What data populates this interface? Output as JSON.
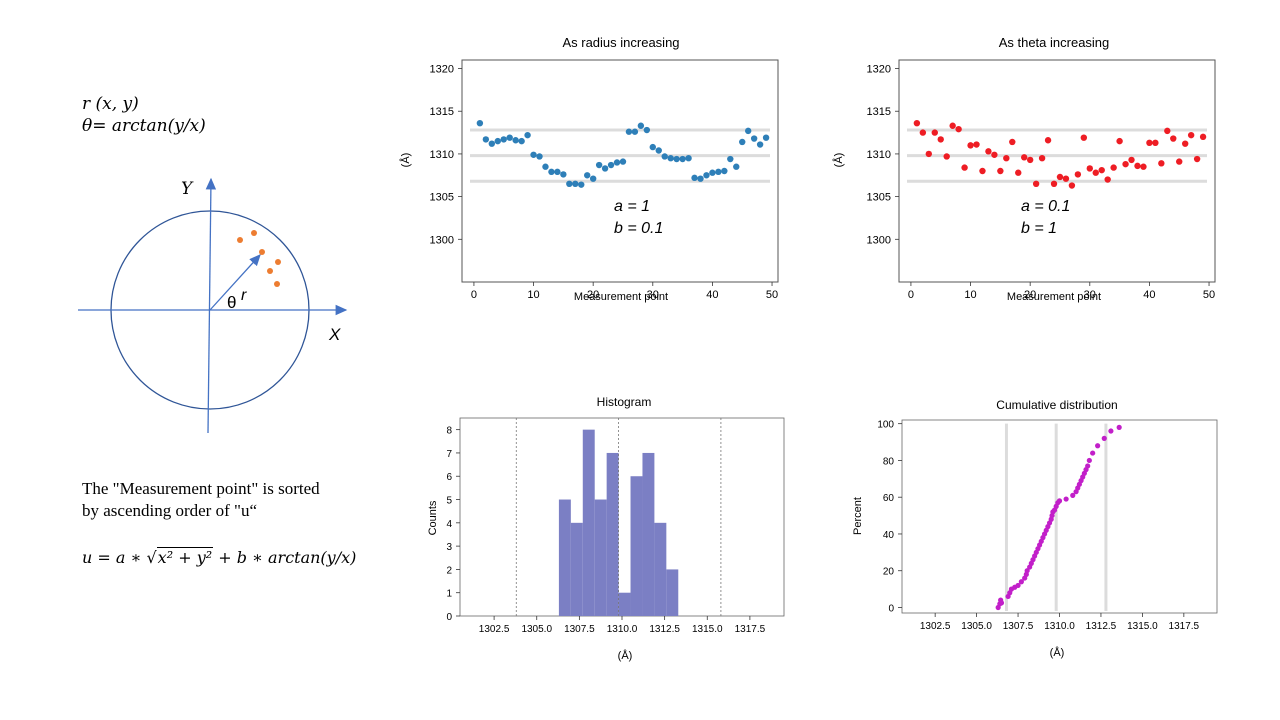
{
  "left_panel": {
    "formula_r": "r (x, y)",
    "formula_theta": "θ= arctan(y/x)",
    "axis_y_label": "Y",
    "axis_x_label": "X",
    "theta_symbol": "θ",
    "r_symbol": "r",
    "note_line1": "The \"Measurement point\" is sorted",
    "note_line2": "by ascending order of \"u“",
    "u_formula_lhs": "u = a ∗ ",
    "u_formula_sqrt": "x² + y²",
    "u_formula_rhs": " + b ∗ arctan(y/x)",
    "colors": {
      "circle": "#2f5597",
      "axis": "#4472c4",
      "points": "#ed7d31"
    }
  },
  "chart_data": [
    {
      "id": "radius",
      "type": "scatter",
      "title": "As radius increasing",
      "xlabel": "Measurement point",
      "ylabel": "(Å)",
      "xlim": [
        -2,
        51
      ],
      "ylim": [
        1295,
        1321
      ],
      "xticks": [
        0,
        10,
        20,
        30,
        40,
        50
      ],
      "yticks": [
        1300,
        1305,
        1310,
        1315,
        1320
      ],
      "reference_lines": [
        1306.8,
        1309.8,
        1312.8
      ],
      "color": "#2e7fb8",
      "annotation_line1": "a = 1",
      "annotation_line2": "b = 0.1",
      "x": [
        1,
        2,
        3,
        4,
        5,
        6,
        7,
        8,
        9,
        10,
        11,
        12,
        13,
        14,
        15,
        16,
        17,
        18,
        19,
        20,
        21,
        22,
        23,
        24,
        25,
        26,
        27,
        28,
        29,
        30,
        31,
        32,
        33,
        34,
        35,
        36,
        37,
        38,
        39,
        40,
        41,
        42,
        43,
        44,
        45,
        46,
        47,
        48,
        49
      ],
      "y": [
        1313.6,
        1311.7,
        1311.2,
        1311.5,
        1311.7,
        1311.9,
        1311.6,
        1311.5,
        1312.2,
        1309.9,
        1309.7,
        1308.5,
        1307.9,
        1307.9,
        1307.6,
        1306.5,
        1306.5,
        1306.4,
        1307.5,
        1307.1,
        1308.7,
        1308.3,
        1308.7,
        1309.0,
        1309.1,
        1312.6,
        1312.6,
        1313.3,
        1312.8,
        1310.8,
        1310.4,
        1309.7,
        1309.5,
        1309.4,
        1309.4,
        1309.5,
        1307.2,
        1307.1,
        1307.5,
        1307.8,
        1307.9,
        1308.0,
        1309.4,
        1308.5,
        1311.4,
        1312.7,
        1311.8,
        1311.1,
        1311.9
      ]
    },
    {
      "id": "theta",
      "type": "scatter",
      "title": "As theta increasing",
      "xlabel": "Measurement point",
      "ylabel": "(Å)",
      "xlim": [
        -2,
        51
      ],
      "ylim": [
        1295,
        1321
      ],
      "xticks": [
        0,
        10,
        20,
        30,
        40,
        50
      ],
      "yticks": [
        1300,
        1305,
        1310,
        1315,
        1320
      ],
      "reference_lines": [
        1306.8,
        1309.8,
        1312.8
      ],
      "color": "#ee1d24",
      "annotation_line1": "a = 0.1",
      "annotation_line2": "b = 1",
      "x": [
        1,
        2,
        3,
        4,
        5,
        6,
        7,
        8,
        9,
        10,
        11,
        12,
        13,
        14,
        15,
        16,
        17,
        18,
        19,
        20,
        21,
        22,
        23,
        24,
        25,
        26,
        27,
        28,
        29,
        30,
        31,
        32,
        33,
        34,
        35,
        36,
        37,
        38,
        39,
        40,
        41,
        42,
        43,
        44,
        45,
        46,
        47,
        48,
        49
      ],
      "y": [
        1313.6,
        1312.5,
        1310.0,
        1312.5,
        1311.7,
        1309.7,
        1313.3,
        1312.9,
        1308.4,
        1311.0,
        1311.1,
        1308.0,
        1310.3,
        1309.9,
        1308.0,
        1309.5,
        1311.4,
        1307.8,
        1309.6,
        1309.3,
        1306.5,
        1309.5,
        1311.6,
        1306.5,
        1307.3,
        1307.1,
        1306.3,
        1307.6,
        1311.9,
        1308.3,
        1307.8,
        1308.1,
        1307.0,
        1308.4,
        1311.5,
        1308.8,
        1309.3,
        1308.6,
        1308.5,
        1311.3,
        1311.3,
        1308.9,
        1312.7,
        1311.8,
        1309.1,
        1311.2,
        1312.2,
        1309.4,
        1312.0
      ]
    },
    {
      "id": "histogram",
      "type": "bar",
      "title": "Histogram",
      "xlabel": "(Å)",
      "ylabel": "Counts",
      "xlim": [
        1300.5,
        1319.5
      ],
      "ylim": [
        0,
        8.5
      ],
      "xticks": [
        1302.5,
        1305.0,
        1307.5,
        1310.0,
        1312.5,
        1315.0,
        1317.5
      ],
      "xtick_labels": [
        "1302.5",
        "1305.0",
        "1307.5",
        "1310.0",
        "1312.5",
        "1315.0",
        "1317.5"
      ],
      "yticks": [
        0,
        1,
        2,
        3,
        4,
        5,
        6,
        7,
        8
      ],
      "reference_lines": [
        1303.8,
        1309.8,
        1315.8
      ],
      "color": "#7b7fc4",
      "bin_edges": [
        1306.3,
        1307.0,
        1307.7,
        1308.4,
        1309.1,
        1309.8,
        1310.5,
        1311.2,
        1311.9,
        1312.6,
        1313.3
      ],
      "values": [
        5,
        4,
        8,
        5,
        7,
        1,
        6,
        7,
        4,
        2
      ]
    },
    {
      "id": "cumulative",
      "type": "scatter",
      "title": "Cumulative distribution",
      "xlabel": "(Å)",
      "ylabel": "Percent",
      "xlim": [
        1300.5,
        1319.5
      ],
      "ylim": [
        -3,
        102
      ],
      "xticks": [
        1302.5,
        1305.0,
        1307.5,
        1310.0,
        1312.5,
        1315.0,
        1317.5
      ],
      "xtick_labels": [
        "1302.5",
        "1305.0",
        "1307.5",
        "1310.0",
        "1312.5",
        "1315.0",
        "1317.5"
      ],
      "yticks": [
        0,
        20,
        40,
        60,
        80,
        100
      ],
      "reference_lines": [
        1306.8,
        1309.8,
        1312.8
      ],
      "color": "#c21fc9",
      "x": [
        1306.3,
        1306.4,
        1306.45,
        1306.5,
        1306.9,
        1307.0,
        1307.1,
        1307.3,
        1307.5,
        1307.7,
        1307.9,
        1308.0,
        1308.05,
        1308.2,
        1308.3,
        1308.4,
        1308.5,
        1308.6,
        1308.7,
        1308.8,
        1308.9,
        1309.0,
        1309.1,
        1309.2,
        1309.3,
        1309.4,
        1309.5,
        1309.55,
        1309.6,
        1309.7,
        1309.8,
        1309.9,
        1310.0,
        1310.4,
        1310.8,
        1311.0,
        1311.1,
        1311.2,
        1311.3,
        1311.4,
        1311.5,
        1311.6,
        1311.7,
        1311.8,
        1312.0,
        1312.3,
        1312.7,
        1313.1,
        1313.6
      ],
      "y": [
        0,
        2,
        4,
        2.5,
        6,
        8,
        10,
        11,
        12,
        14,
        16,
        18,
        20,
        22,
        24,
        26,
        28,
        30,
        32,
        34,
        36,
        38,
        40,
        42,
        44,
        46,
        48,
        50,
        52,
        53,
        55,
        57,
        58,
        59,
        61,
        63,
        65,
        67,
        69,
        71,
        73,
        75,
        77,
        80,
        84,
        88,
        92,
        96,
        98
      ]
    }
  ]
}
